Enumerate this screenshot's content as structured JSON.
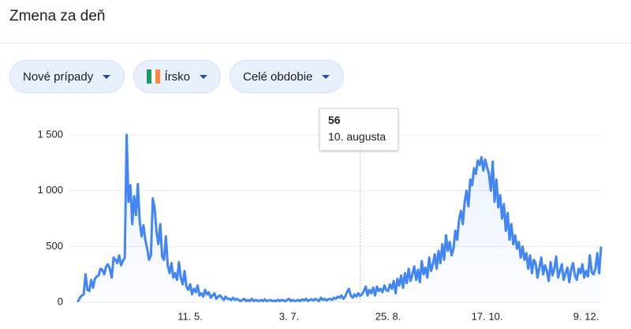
{
  "header": {
    "title": "Zmena za deň"
  },
  "controls": [
    {
      "label": "Nové prípady"
    },
    {
      "label": "Írsko"
    },
    {
      "label": "Celé obdobie"
    }
  ],
  "tooltip": {
    "date": "10. augusta"
  },
  "chart_data": {
    "type": "line",
    "color": "#4285f4",
    "grid": true,
    "tooltip_index": 151,
    "ylim": [
      0,
      1500
    ],
    "yticks": [
      0,
      500,
      {
        "value": 1000,
        "label": "1 000"
      },
      {
        "value": 1500,
        "label": "1 500"
      }
    ],
    "categories": [
      null,
      null,
      null,
      null,
      null,
      null,
      null,
      null,
      null,
      null,
      null,
      null,
      null,
      null,
      null,
      null,
      null,
      null,
      null,
      null,
      null,
      null,
      null,
      null,
      null,
      null,
      null,
      null,
      null,
      null,
      null,
      null,
      null,
      null,
      null,
      null,
      null,
      null,
      null,
      null,
      null,
      null,
      null,
      null,
      null,
      null,
      null,
      null,
      null,
      null,
      null,
      null,
      null,
      null,
      null,
      null,
      null,
      null,
      null,
      null,
      "11. 5.",
      null,
      null,
      null,
      null,
      null,
      null,
      null,
      null,
      null,
      null,
      null,
      null,
      null,
      null,
      null,
      null,
      null,
      null,
      null,
      null,
      null,
      null,
      null,
      null,
      null,
      null,
      null,
      null,
      null,
      null,
      null,
      null,
      null,
      null,
      null,
      null,
      null,
      null,
      null,
      null,
      null,
      null,
      null,
      null,
      null,
      null,
      null,
      null,
      null,
      null,
      null,
      null,
      "3. 7.",
      null,
      null,
      null,
      null,
      null,
      null,
      null,
      null,
      null,
      null,
      null,
      null,
      null,
      null,
      null,
      null,
      null,
      null,
      null,
      null,
      null,
      null,
      null,
      null,
      null,
      null,
      null,
      null,
      null,
      null,
      null,
      null,
      null,
      null,
      null,
      null,
      null,
      null,
      null,
      null,
      null,
      null,
      null,
      null,
      null,
      null,
      null,
      null,
      null,
      null,
      null,
      null,
      "25. 8.",
      null,
      null,
      null,
      null,
      null,
      null,
      null,
      null,
      null,
      null,
      null,
      null,
      null,
      null,
      null,
      null,
      null,
      null,
      null,
      null,
      null,
      null,
      null,
      null,
      null,
      null,
      null,
      null,
      null,
      null,
      null,
      null,
      null,
      null,
      null,
      null,
      null,
      null,
      null,
      null,
      null,
      null,
      null,
      null,
      null,
      null,
      null,
      null,
      null,
      null,
      null,
      null,
      "17. 10.",
      null,
      null,
      null,
      null,
      null,
      null,
      null,
      null,
      null,
      null,
      null,
      null,
      null,
      null,
      null,
      null,
      null,
      null,
      null,
      null,
      null,
      null,
      null,
      null,
      null,
      null,
      null,
      null,
      null,
      null,
      null,
      null,
      null,
      null,
      null,
      null,
      null,
      null,
      null,
      null,
      null,
      null,
      null,
      null,
      null,
      null,
      null,
      null,
      null,
      null,
      null,
      null,
      "9. 12.",
      null,
      null,
      null,
      null,
      null,
      null,
      null,
      null
    ],
    "values": [
      10,
      40,
      60,
      70,
      250,
      110,
      100,
      200,
      130,
      210,
      230,
      240,
      300,
      290,
      250,
      320,
      340,
      300,
      220,
      400,
      380,
      350,
      420,
      330,
      370,
      400,
      1500,
      900,
      1050,
      700,
      950,
      780,
      1060,
      720,
      590,
      690,
      560,
      480,
      380,
      420,
      930,
      840,
      630,
      520,
      700,
      410,
      380,
      590,
      330,
      260,
      350,
      220,
      260,
      200,
      360,
      220,
      160,
      280,
      140,
      110,
      160,
      70,
      120,
      90,
      150,
      60,
      80,
      50,
      110,
      70,
      90,
      40,
      60,
      80,
      30,
      50,
      60,
      40,
      20,
      50,
      30,
      30,
      20,
      40,
      20,
      30,
      20,
      10,
      20,
      30,
      10,
      20,
      10,
      30,
      10,
      20,
      15,
      10,
      20,
      10,
      25,
      10,
      15,
      20,
      10,
      15,
      10,
      20,
      10,
      20,
      15,
      10,
      20,
      30,
      10,
      20,
      10,
      15,
      20,
      10,
      25,
      15,
      30,
      10,
      20,
      25,
      15,
      30,
      20,
      10,
      40,
      20,
      30,
      15,
      25,
      30,
      20,
      40,
      30,
      50,
      40,
      60,
      30,
      50,
      90,
      120,
      60,
      40,
      70,
      50,
      80,
      56,
      70,
      100,
      140,
      60,
      110,
      80,
      130,
      60,
      140,
      100,
      120,
      90,
      150,
      110,
      100,
      160,
      120,
      190,
      80,
      210,
      150,
      240,
      130,
      260,
      170,
      300,
      190,
      250,
      320,
      200,
      290,
      180,
      370,
      250,
      310,
      220,
      400,
      280,
      340,
      430,
      300,
      460,
      350,
      520,
      380,
      600,
      460,
      540,
      420,
      480,
      640,
      560,
      740,
      820,
      700,
      900,
      1000,
      860,
      1100,
      1050,
      1200,
      1150,
      1270,
      1230,
      1300,
      1180,
      1280,
      1210,
      1150,
      1000,
      1260,
      900,
      1100,
      850,
      960,
      750,
      880,
      640,
      800,
      560,
      700,
      520,
      600,
      480,
      540,
      400,
      500,
      380,
      440,
      300,
      420,
      260,
      380,
      350,
      220,
      310,
      400,
      250,
      330,
      280,
      190,
      360,
      240,
      300,
      410,
      220,
      280,
      340,
      200,
      260,
      310,
      180,
      290,
      350,
      240,
      200,
      300,
      260,
      340,
      220,
      280,
      230,
      420,
      270,
      250,
      300,
      440,
      260,
      490
    ]
  }
}
